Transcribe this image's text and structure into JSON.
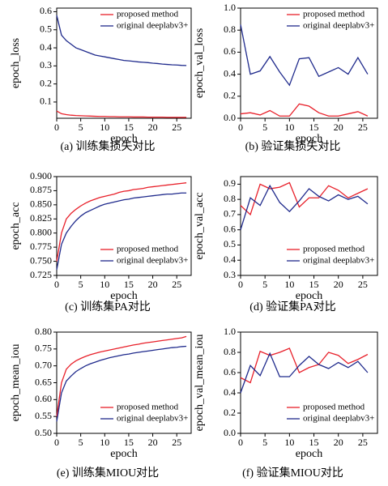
{
  "chart_data": [
    {
      "type": "line",
      "caption": "(a) 训练集损失对比",
      "xlabel": "epoch",
      "ylabel": "epoch_loss",
      "legend": "upper right",
      "x": [
        0,
        1,
        2,
        3,
        4,
        5,
        6,
        7,
        8,
        9,
        10,
        11,
        12,
        13,
        14,
        15,
        16,
        17,
        18,
        19,
        20,
        21,
        22,
        23,
        24,
        25,
        26,
        27
      ],
      "series": [
        {
          "name": "proposed method",
          "color": "#e8202a",
          "values": [
            0.05,
            0.035,
            0.03,
            0.027,
            0.025,
            0.024,
            0.023,
            0.022,
            0.021,
            0.02,
            0.02,
            0.019,
            0.019,
            0.018,
            0.018,
            0.018,
            0.017,
            0.017,
            0.017,
            0.016,
            0.016,
            0.016,
            0.016,
            0.015,
            0.015,
            0.015,
            0.015,
            0.015
          ]
        },
        {
          "name": "original deeplabv3+",
          "color": "#1f2a8c",
          "values": [
            0.58,
            0.47,
            0.44,
            0.42,
            0.4,
            0.39,
            0.38,
            0.37,
            0.36,
            0.355,
            0.35,
            0.345,
            0.34,
            0.335,
            0.33,
            0.328,
            0.325,
            0.322,
            0.32,
            0.318,
            0.315,
            0.313,
            0.31,
            0.308,
            0.306,
            0.305,
            0.303,
            0.302
          ]
        }
      ],
      "xlim": [
        0,
        28
      ],
      "xticks": [
        0,
        5,
        10,
        15,
        20,
        25
      ],
      "ylim": [
        0.01,
        0.62
      ],
      "yticks": [
        0.1,
        0.2,
        0.3,
        0.4,
        0.5,
        0.6
      ]
    },
    {
      "type": "line",
      "caption": "(b) 验证集损失对比",
      "xlabel": "epoch",
      "ylabel": "epoch_val_loss",
      "legend": "upper right",
      "x": [
        0,
        2,
        4,
        6,
        8,
        10,
        12,
        14,
        16,
        18,
        20,
        22,
        24,
        26
      ],
      "series": [
        {
          "name": "proposed method",
          "color": "#e8202a",
          "values": [
            0.04,
            0.05,
            0.03,
            0.07,
            0.02,
            0.02,
            0.13,
            0.11,
            0.05,
            0.02,
            0.02,
            0.04,
            0.06,
            0.02
          ]
        },
        {
          "name": "original deeplabv3+",
          "color": "#1f2a8c",
          "values": [
            0.85,
            0.4,
            0.43,
            0.56,
            0.42,
            0.3,
            0.54,
            0.55,
            0.38,
            0.42,
            0.46,
            0.4,
            0.55,
            0.4
          ]
        }
      ],
      "xlim": [
        0,
        28
      ],
      "xticks": [
        0,
        5,
        10,
        15,
        20,
        25
      ],
      "ylim": [
        0,
        1
      ],
      "yticks": [
        {
          "value": 0,
          "label": "0.0"
        },
        0.2,
        0.4,
        0.6,
        0.8,
        {
          "value": 1,
          "label": "1.0"
        }
      ]
    },
    {
      "type": "line",
      "caption": "(c) 训练集PA对比",
      "xlabel": "epoch",
      "ylabel": "epoch_acc",
      "legend": "lower right",
      "x": [
        0,
        1,
        2,
        3,
        4,
        5,
        6,
        7,
        8,
        9,
        10,
        11,
        12,
        13,
        14,
        15,
        16,
        17,
        18,
        19,
        20,
        21,
        22,
        23,
        24,
        25,
        26,
        27
      ],
      "series": [
        {
          "name": "proposed method",
          "color": "#e8202a",
          "values": [
            0.75,
            0.8,
            0.825,
            0.835,
            0.842,
            0.848,
            0.853,
            0.857,
            0.86,
            0.863,
            0.865,
            0.867,
            0.869,
            0.872,
            0.874,
            0.875,
            0.877,
            0.878,
            0.879,
            0.881,
            0.882,
            0.883,
            0.884,
            0.885,
            0.886,
            0.887,
            0.888,
            0.889
          ]
        },
        {
          "name": "original deeplabv3+",
          "color": "#1f2a8c",
          "values": [
            0.735,
            0.78,
            0.8,
            0.812,
            0.822,
            0.83,
            0.836,
            0.84,
            0.844,
            0.848,
            0.851,
            0.853,
            0.855,
            0.857,
            0.859,
            0.86,
            0.862,
            0.863,
            0.864,
            0.865,
            0.866,
            0.867,
            0.868,
            0.869,
            0.869,
            0.87,
            0.871,
            0.871
          ]
        }
      ],
      "xlim": [
        0,
        28
      ],
      "xticks": [
        0,
        5,
        10,
        15,
        20,
        25
      ],
      "ylim": [
        0.725,
        0.9
      ],
      "yticks": [
        0.725,
        {
          "value": 0.75,
          "label": "0.750"
        },
        0.775,
        {
          "value": 0.8,
          "label": "0.800"
        },
        0.825,
        {
          "value": 0.85,
          "label": "0.850"
        },
        0.875,
        {
          "value": 0.9,
          "label": "0.900"
        }
      ]
    },
    {
      "type": "line",
      "caption": "(d) 验证集PA对比",
      "xlabel": "epoch",
      "ylabel": "epoch_val_acc",
      "legend": "lower right",
      "x": [
        0,
        2,
        4,
        6,
        8,
        10,
        12,
        14,
        16,
        18,
        20,
        22,
        24,
        26
      ],
      "series": [
        {
          "name": "proposed method",
          "color": "#e8202a",
          "values": [
            0.76,
            0.7,
            0.9,
            0.87,
            0.88,
            0.91,
            0.75,
            0.81,
            0.81,
            0.89,
            0.86,
            0.81,
            0.84,
            0.87
          ]
        },
        {
          "name": "original deeplabv3+",
          "color": "#1f2a8c",
          "values": [
            0.6,
            0.81,
            0.76,
            0.89,
            0.78,
            0.72,
            0.79,
            0.87,
            0.82,
            0.79,
            0.83,
            0.8,
            0.82,
            0.77
          ]
        }
      ],
      "xlim": [
        0,
        28
      ],
      "xticks": [
        0,
        5,
        10,
        15,
        20,
        25
      ],
      "ylim": [
        0.3,
        0.95
      ],
      "yticks": [
        0.3,
        0.4,
        0.5,
        0.6,
        0.7,
        0.8,
        0.9
      ]
    },
    {
      "type": "line",
      "caption": "(e) 训练集MIOU对比",
      "xlabel": "epoch",
      "ylabel": "epoch_mean_iou",
      "legend": "lower right",
      "x": [
        0,
        1,
        2,
        3,
        4,
        5,
        6,
        7,
        8,
        9,
        10,
        11,
        12,
        13,
        14,
        15,
        16,
        17,
        18,
        19,
        20,
        21,
        22,
        23,
        24,
        25,
        26,
        27
      ],
      "series": [
        {
          "name": "proposed method",
          "color": "#e8202a",
          "values": [
            0.55,
            0.65,
            0.69,
            0.705,
            0.715,
            0.722,
            0.728,
            0.733,
            0.737,
            0.741,
            0.744,
            0.747,
            0.75,
            0.753,
            0.756,
            0.759,
            0.762,
            0.764,
            0.767,
            0.769,
            0.771,
            0.773,
            0.775,
            0.777,
            0.779,
            0.781,
            0.783,
            0.787
          ]
        },
        {
          "name": "original deeplabv3+",
          "color": "#1f2a8c",
          "values": [
            0.535,
            0.62,
            0.655,
            0.67,
            0.683,
            0.692,
            0.7,
            0.706,
            0.711,
            0.716,
            0.72,
            0.724,
            0.727,
            0.73,
            0.733,
            0.735,
            0.738,
            0.74,
            0.742,
            0.744,
            0.746,
            0.748,
            0.75,
            0.752,
            0.754,
            0.755,
            0.757,
            0.758
          ]
        }
      ],
      "xlim": [
        0,
        28
      ],
      "xticks": [
        0,
        5,
        10,
        15,
        20,
        25
      ],
      "ylim": [
        0.5,
        0.8
      ],
      "yticks": [
        {
          "value": 0.5,
          "label": "0.50"
        },
        0.55,
        {
          "value": 0.6,
          "label": "0.60"
        },
        0.65,
        {
          "value": 0.7,
          "label": "0.70"
        },
        0.75,
        {
          "value": 0.8,
          "label": "0.80"
        }
      ]
    },
    {
      "type": "line",
      "caption": "(f) 验证集MIOU对比",
      "xlabel": "epoch",
      "ylabel": "epoch_val_mean_iou",
      "legend": "lower right",
      "x": [
        0,
        2,
        4,
        6,
        8,
        10,
        12,
        14,
        16,
        18,
        20,
        22,
        24,
        26
      ],
      "series": [
        {
          "name": "proposed method",
          "color": "#e8202a",
          "values": [
            0.55,
            0.5,
            0.81,
            0.77,
            0.8,
            0.84,
            0.6,
            0.65,
            0.68,
            0.8,
            0.77,
            0.69,
            0.73,
            0.78
          ]
        },
        {
          "name": "original deeplabv3+",
          "color": "#1f2a8c",
          "values": [
            0.4,
            0.67,
            0.57,
            0.79,
            0.56,
            0.56,
            0.67,
            0.76,
            0.68,
            0.64,
            0.7,
            0.65,
            0.71,
            0.6
          ]
        }
      ],
      "xlim": [
        0,
        28
      ],
      "xticks": [
        0,
        5,
        10,
        15,
        20,
        25
      ],
      "ylim": [
        0,
        1
      ],
      "yticks": [
        {
          "value": 0,
          "label": "0.0"
        },
        0.2,
        0.4,
        0.6,
        0.8,
        {
          "value": 1,
          "label": "1.0"
        }
      ]
    }
  ]
}
